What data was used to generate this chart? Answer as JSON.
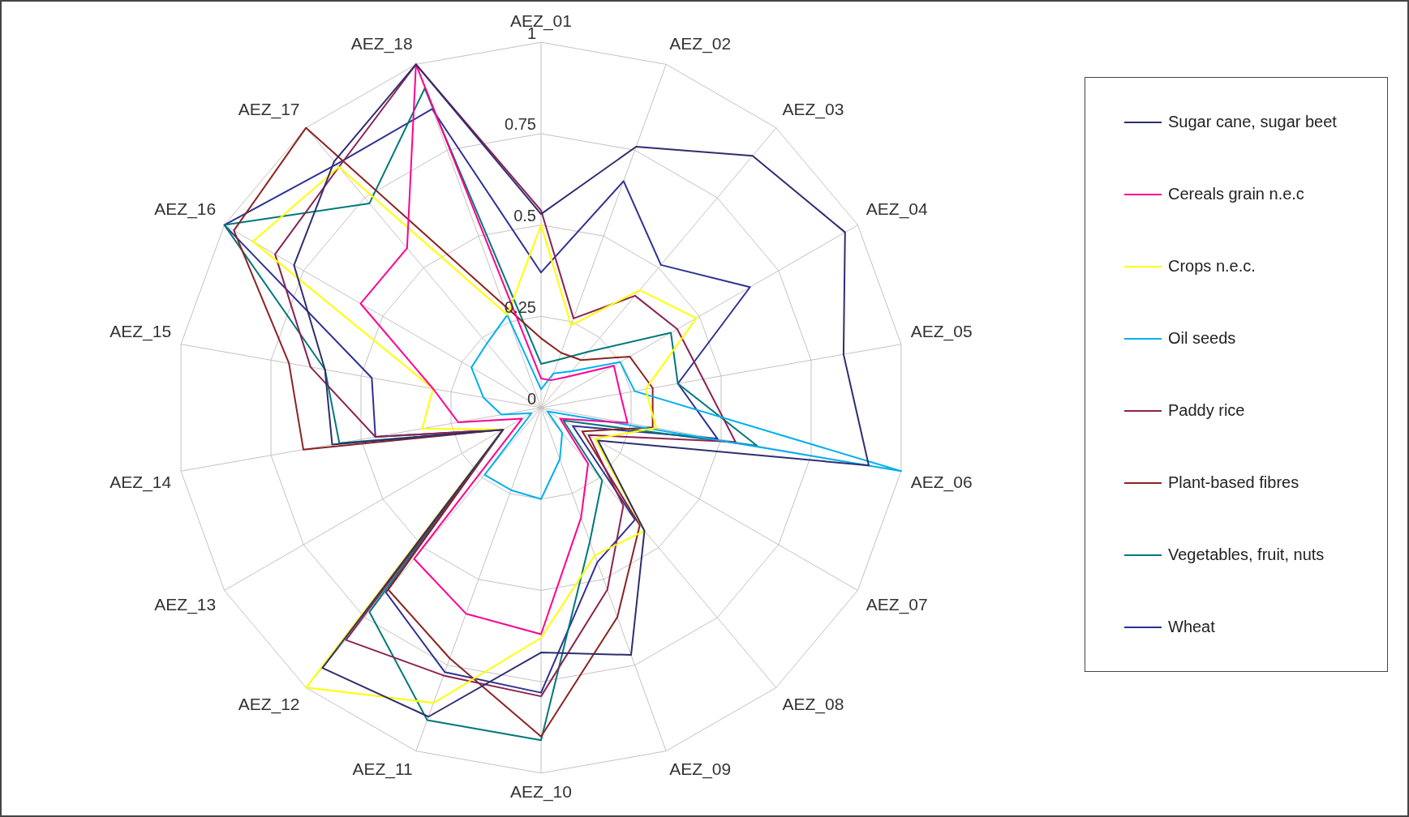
{
  "chart_data": {
    "type": "radar",
    "categories": [
      "AEZ_01",
      "AEZ_02",
      "AEZ_03",
      "AEZ_04",
      "AEZ_05",
      "AEZ_06",
      "AEZ_07",
      "AEZ_08",
      "AEZ_09",
      "AEZ_10",
      "AEZ_11",
      "AEZ_12",
      "AEZ_13",
      "AEZ_14",
      "AEZ_15",
      "AEZ_16",
      "AEZ_17",
      "AEZ_18"
    ],
    "series": [
      {
        "name": "Sugar cane, sugar beet",
        "color": "#2e2e6e",
        "values": [
          0.53,
          0.76,
          0.9,
          0.96,
          0.84,
          0.91,
          0.18,
          0.44,
          0.72,
          0.67,
          0.9,
          0.93,
          0.12,
          0.58,
          0.6,
          0.78,
          0.88,
          1.0
        ]
      },
      {
        "name": "Cereals grain n.e.c",
        "color": "#ff0090",
        "values": [
          0.08,
          0.08,
          0.11,
          0.23,
          0.22,
          0.24,
          0.06,
          0.2,
          0.32,
          0.62,
          0.6,
          0.54,
          0.06,
          0.23,
          0.3,
          0.57,
          0.57,
          1.0
        ]
      },
      {
        "name": "Crops n.e.c.",
        "color": "#ffff00",
        "values": [
          0.5,
          0.24,
          0.42,
          0.49,
          0.29,
          0.32,
          0.17,
          0.44,
          0.43,
          0.63,
          0.86,
          1.0,
          0.12,
          0.33,
          0.3,
          0.91,
          0.86,
          0.27
        ]
      },
      {
        "name": "Oil seeds",
        "color": "#00b0f0",
        "values": [
          0.05,
          0.1,
          0.13,
          0.25,
          0.26,
          1.0,
          0.02,
          0.09,
          0.15,
          0.25,
          0.24,
          0.24,
          0.03,
          0.11,
          0.16,
          0.22,
          0.23,
          0.27
        ]
      },
      {
        "name": "Paddy rice",
        "color": "#8b2252",
        "values": [
          0.54,
          0.26,
          0.4,
          0.43,
          0.45,
          0.54,
          0.15,
          0.35,
          0.53,
          0.79,
          0.78,
          0.83,
          0.12,
          0.46,
          0.64,
          0.84,
          0.86,
          1.0
        ]
      },
      {
        "name": "Plant-based fibres",
        "color": "#8b2323",
        "values": [
          0.19,
          0.16,
          0.17,
          0.28,
          0.31,
          0.31,
          0.13,
          0.42,
          0.61,
          0.9,
          0.73,
          0.65,
          0.12,
          0.66,
          0.7,
          0.97,
          1.0,
          0.3
        ]
      },
      {
        "name": "Vegetables, fruit, nuts",
        "color": "#007878",
        "values": [
          0.12,
          0.14,
          0.2,
          0.41,
          0.38,
          0.6,
          0.07,
          0.26,
          0.39,
          0.91,
          0.91,
          0.73,
          0.12,
          0.56,
          0.6,
          1.0,
          0.73,
          0.93
        ]
      },
      {
        "name": "Wheat",
        "color": "#2e3192",
        "values": [
          0.37,
          0.66,
          0.51,
          0.66,
          0.38,
          0.49,
          0.1,
          0.4,
          0.45,
          0.78,
          0.77,
          0.66,
          0.12,
          0.46,
          0.47,
          1.0,
          0.87,
          0.87
        ]
      }
    ],
    "ylim": [
      0,
      1
    ],
    "yticks": [
      0,
      0.25,
      0.5,
      0.75,
      1
    ],
    "grid": true,
    "legend": "right",
    "marker": "none"
  }
}
